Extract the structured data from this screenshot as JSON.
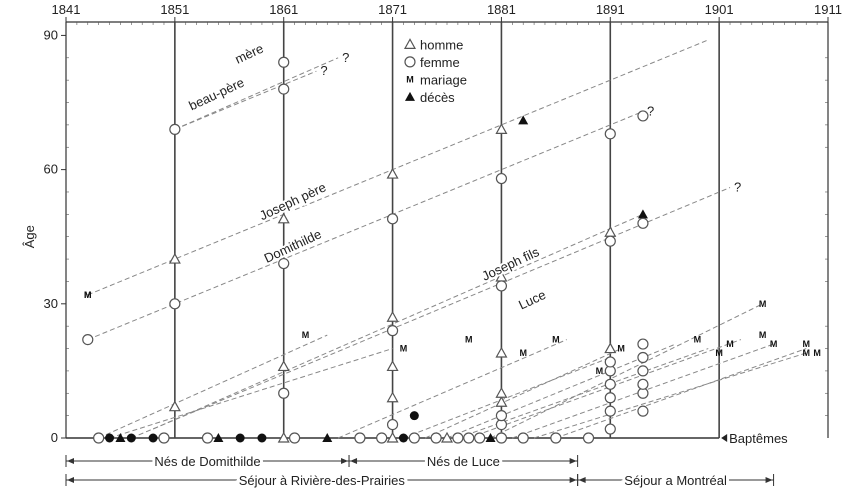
{
  "chart_data": {
    "type": "scatter",
    "title": "",
    "xlabel": "",
    "ylabel": "Âge",
    "xlim": [
      1841,
      1911
    ],
    "ylim": [
      0,
      93
    ],
    "x_ticks": [
      1841,
      1851,
      1861,
      1871,
      1881,
      1891,
      1901,
      1911
    ],
    "y_ticks": [
      0,
      30,
      60,
      90
    ],
    "census_years": [
      1851,
      1861,
      1871,
      1881,
      1891
    ],
    "baptism_axis_end": 1901,
    "legend": [
      {
        "symbol": "triangle-open",
        "label": "homme"
      },
      {
        "symbol": "circle-open",
        "label": "femme"
      },
      {
        "symbol": "M",
        "label": "mariage"
      },
      {
        "symbol": "triangle-filled",
        "label": "décès"
      }
    ],
    "series": [
      {
        "name": "mère",
        "from": [
          1851,
          69
        ],
        "to": [
          1866,
          85
        ],
        "points": [
          {
            "x": 1851,
            "y": 69,
            "m": "circle-open"
          },
          {
            "x": 1861,
            "y": 84,
            "m": "circle-open"
          }
        ],
        "end_label": "?"
      },
      {
        "name": "beau-père",
        "from": [
          1851,
          69
        ],
        "to": [
          1864,
          82
        ],
        "points": [
          {
            "x": 1861,
            "y": 78,
            "m": "circle-open"
          }
        ],
        "end_label": "?"
      },
      {
        "name": "Joseph père",
        "from": [
          1843,
          32
        ],
        "to": [
          1900,
          89
        ],
        "points": [
          {
            "x": 1843,
            "y": 32,
            "m": "M"
          },
          {
            "x": 1851,
            "y": 40,
            "m": "triangle-open"
          },
          {
            "x": 1861,
            "y": 49,
            "m": "triangle-open"
          },
          {
            "x": 1871,
            "y": 59,
            "m": "triangle-open"
          },
          {
            "x": 1881,
            "y": 69,
            "m": "triangle-open"
          },
          {
            "x": 1883,
            "y": 71,
            "m": "triangle-filled"
          }
        ],
        "end_label": ""
      },
      {
        "name": "Domithilde",
        "from": [
          1843,
          22
        ],
        "to": [
          1894,
          73
        ],
        "points": [
          {
            "x": 1843,
            "y": 22,
            "m": "circle-open"
          },
          {
            "x": 1851,
            "y": 30,
            "m": "circle-open"
          },
          {
            "x": 1861,
            "y": 39,
            "m": "circle-open"
          },
          {
            "x": 1871,
            "y": 49,
            "m": "circle-open"
          },
          {
            "x": 1881,
            "y": 58,
            "m": "circle-open"
          },
          {
            "x": 1891,
            "y": 68,
            "m": "circle-open"
          },
          {
            "x": 1894,
            "y": 72,
            "m": "circle-open"
          }
        ],
        "end_label": "?"
      },
      {
        "name": "Joseph fils",
        "from": [
          1849,
          2
        ],
        "to": [
          1894,
          50
        ],
        "points": [
          {
            "x": 1851,
            "y": 7,
            "m": "triangle-open"
          },
          {
            "x": 1861,
            "y": 16,
            "m": "triangle-open"
          },
          {
            "x": 1871,
            "y": 27,
            "m": "triangle-open"
          },
          {
            "x": 1881,
            "y": 36,
            "m": "triangle-open"
          },
          {
            "x": 1891,
            "y": 46,
            "m": "triangle-open"
          },
          {
            "x": 1894,
            "y": 50,
            "m": "triangle-filled"
          }
        ],
        "end_label": ""
      },
      {
        "name": "Luce",
        "from": [
          1847,
          0
        ],
        "to": [
          1902,
          56
        ],
        "points": [
          {
            "x": 1861,
            "y": 10,
            "m": "circle-open"
          },
          {
            "x": 1871,
            "y": 24,
            "m": "circle-open"
          },
          {
            "x": 1881,
            "y": 34,
            "m": "circle-open"
          },
          {
            "x": 1891,
            "y": 44,
            "m": "circle-open"
          },
          {
            "x": 1894,
            "y": 48,
            "m": "circle-open"
          }
        ],
        "end_label": "?"
      }
    ],
    "annotations": [
      {
        "text": "mère",
        "x": 1858,
        "y": 85,
        "angle": -25
      },
      {
        "text": "beau-père",
        "x": 1855,
        "y": 76,
        "angle": -25
      },
      {
        "text": "Joseph père",
        "x": 1862,
        "y": 52,
        "angle": -25
      },
      {
        "text": "Domithilde",
        "x": 1862,
        "y": 42,
        "angle": -25
      },
      {
        "text": "Joseph fils",
        "x": 1882,
        "y": 38,
        "angle": -25
      },
      {
        "text": "Luce",
        "x": 1884,
        "y": 30,
        "angle": -25
      }
    ],
    "younger_children_lines": [
      {
        "from": [
          1844,
          0
        ],
        "to": [
          1865,
          23
        ]
      },
      {
        "from": [
          1845,
          0
        ],
        "to": [
          1871,
          20
        ]
      },
      {
        "from": [
          1866,
          0
        ],
        "to": [
          1887,
          22
        ]
      },
      {
        "from": [
          1872,
          0
        ],
        "to": [
          1891,
          18
        ]
      },
      {
        "from": [
          1874,
          0
        ],
        "to": [
          1892,
          20
        ]
      },
      {
        "from": [
          1876,
          0
        ],
        "to": [
          1897,
          21
        ]
      },
      {
        "from": [
          1877,
          0
        ],
        "to": [
          1900,
          20
        ]
      },
      {
        "from": [
          1878,
          0
        ],
        "to": [
          1903,
          22
        ]
      },
      {
        "from": [
          1880,
          0
        ],
        "to": [
          1905,
          30
        ]
      },
      {
        "from": [
          1882,
          0
        ],
        "to": [
          1906,
          21
        ]
      },
      {
        "from": [
          1884,
          0
        ],
        "to": [
          1909,
          19
        ]
      },
      {
        "from": [
          1886,
          0
        ],
        "to": [
          1909,
          20
        ]
      }
    ],
    "census_points": [
      {
        "x": 1871,
        "y": 3,
        "m": "circle-open"
      },
      {
        "x": 1871,
        "y": 9,
        "m": "triangle-open"
      },
      {
        "x": 1871,
        "y": 16,
        "m": "triangle-open"
      },
      {
        "x": 1871,
        "y": 0,
        "m": "triangle-open"
      },
      {
        "x": 1881,
        "y": 3,
        "m": "circle-open"
      },
      {
        "x": 1881,
        "y": 5,
        "m": "circle-open"
      },
      {
        "x": 1881,
        "y": 8,
        "m": "triangle-open"
      },
      {
        "x": 1881,
        "y": 10,
        "m": "triangle-open"
      },
      {
        "x": 1881,
        "y": 19,
        "m": "triangle-open"
      },
      {
        "x": 1891,
        "y": 2,
        "m": "circle-open"
      },
      {
        "x": 1891,
        "y": 6,
        "m": "circle-open"
      },
      {
        "x": 1891,
        "y": 9,
        "m": "circle-open"
      },
      {
        "x": 1891,
        "y": 12,
        "m": "circle-open"
      },
      {
        "x": 1891,
        "y": 15,
        "m": "circle-open"
      },
      {
        "x": 1891,
        "y": 17,
        "m": "circle-open"
      },
      {
        "x": 1891,
        "y": 20,
        "m": "triangle-open"
      },
      {
        "x": 1894,
        "y": 6,
        "m": "circle-open"
      },
      {
        "x": 1894,
        "y": 10,
        "m": "circle-open"
      },
      {
        "x": 1894,
        "y": 12,
        "m": "circle-open"
      },
      {
        "x": 1894,
        "y": 15,
        "m": "circle-open"
      },
      {
        "x": 1894,
        "y": 18,
        "m": "circle-open"
      },
      {
        "x": 1894,
        "y": 21,
        "m": "circle-open"
      },
      {
        "x": 1873,
        "y": 5,
        "m": "circle-filled"
      }
    ],
    "marriages": [
      {
        "x": 1843,
        "y": 32
      },
      {
        "x": 1863,
        "y": 23
      },
      {
        "x": 1872,
        "y": 20
      },
      {
        "x": 1878,
        "y": 22
      },
      {
        "x": 1883,
        "y": 19
      },
      {
        "x": 1886,
        "y": 22
      },
      {
        "x": 1890,
        "y": 15
      },
      {
        "x": 1892,
        "y": 20
      },
      {
        "x": 1899,
        "y": 22
      },
      {
        "x": 1901,
        "y": 19
      },
      {
        "x": 1902,
        "y": 21
      },
      {
        "x": 1905,
        "y": 30
      },
      {
        "x": 1905,
        "y": 23
      },
      {
        "x": 1906,
        "y": 21
      },
      {
        "x": 1909,
        "y": 21
      },
      {
        "x": 1909,
        "y": 19
      },
      {
        "x": 1910,
        "y": 19
      }
    ],
    "baptisms": [
      {
        "x": 1844,
        "m": "circle-open"
      },
      {
        "x": 1845,
        "m": "circle-filled"
      },
      {
        "x": 1846,
        "m": "triangle-filled"
      },
      {
        "x": 1847,
        "m": "circle-filled"
      },
      {
        "x": 1849,
        "m": "circle-filled"
      },
      {
        "x": 1850,
        "m": "circle-open"
      },
      {
        "x": 1854,
        "m": "circle-open"
      },
      {
        "x": 1855,
        "m": "triangle-filled"
      },
      {
        "x": 1857,
        "m": "circle-filled"
      },
      {
        "x": 1859,
        "m": "circle-filled"
      },
      {
        "x": 1861,
        "m": "triangle-open"
      },
      {
        "x": 1862,
        "m": "circle-open"
      },
      {
        "x": 1865,
        "m": "triangle-filled"
      },
      {
        "x": 1868,
        "m": "circle-open"
      },
      {
        "x": 1870,
        "m": "circle-open"
      },
      {
        "x": 1872,
        "m": "circle-filled"
      },
      {
        "x": 1873,
        "m": "circle-open"
      },
      {
        "x": 1875,
        "m": "circle-open"
      },
      {
        "x": 1876,
        "m": "triangle-open"
      },
      {
        "x": 1877,
        "m": "circle-open"
      },
      {
        "x": 1878,
        "m": "circle-open"
      },
      {
        "x": 1879,
        "m": "circle-open"
      },
      {
        "x": 1880,
        "m": "triangle-filled"
      },
      {
        "x": 1881,
        "m": "circle-open"
      },
      {
        "x": 1883,
        "m": "circle-open"
      },
      {
        "x": 1886,
        "m": "circle-open"
      },
      {
        "x": 1889,
        "m": "circle-open"
      }
    ],
    "baptemes_label": "Baptêmes",
    "periods": [
      {
        "label": "Nés de Domithilde",
        "from": 1841,
        "to": 1867,
        "row": 1
      },
      {
        "label": "Nés de Luce",
        "from": 1867,
        "to": 1888,
        "row": 1
      },
      {
        "label": "Séjour à Rivière-des-Prairies",
        "from": 1841,
        "to": 1888,
        "row": 2
      },
      {
        "label": "Séjour a Montréal",
        "from": 1888,
        "to": 1906,
        "row": 2
      }
    ],
    "grid": false,
    "legend_position": "top-center"
  }
}
